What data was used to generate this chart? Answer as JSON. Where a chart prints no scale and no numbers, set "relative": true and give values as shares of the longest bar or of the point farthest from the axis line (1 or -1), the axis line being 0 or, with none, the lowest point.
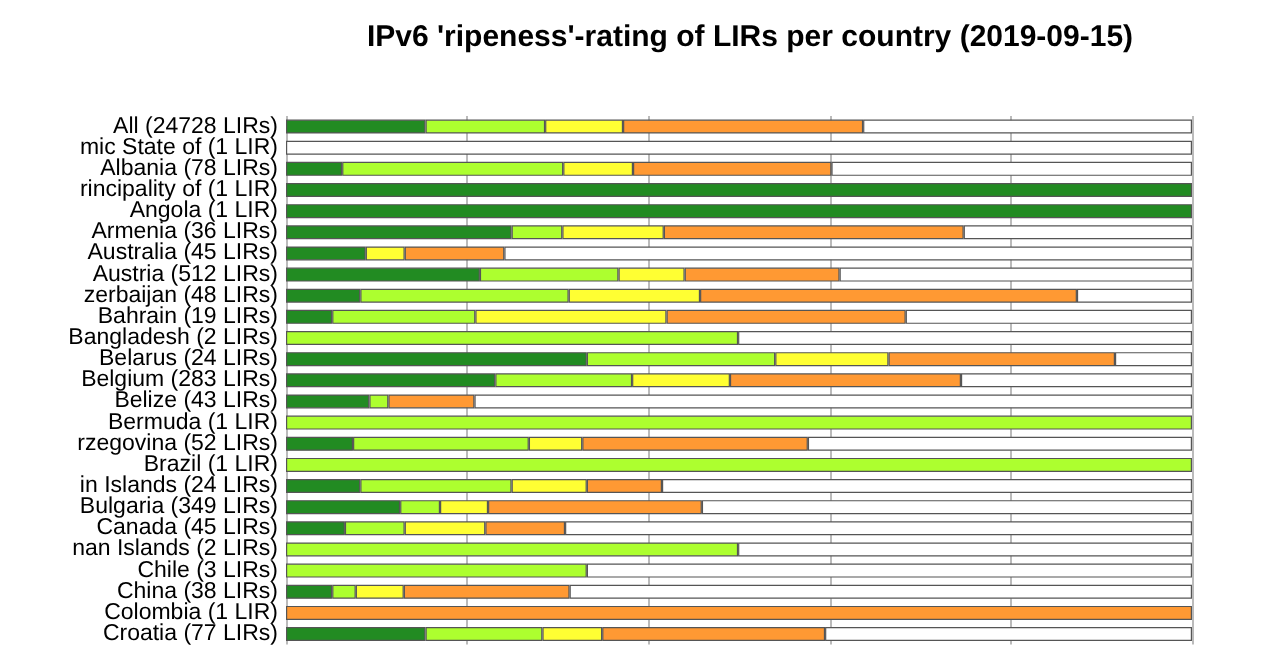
{
  "chart_data": {
    "type": "bar",
    "title": "IPv6 'ripeness'-rating of LIRs per country (2019-09-15)",
    "orientation": "horizontal",
    "stacked": true,
    "relative": true,
    "grid": "x",
    "categories": [
      "All (24728 LIRs)",
      "mic State of (1 LIR)",
      "Albania (78 LIRs)",
      "rincipality of (1 LIR)",
      "Angola (1 LIR)",
      "Armenia (36 LIRs)",
      "Australia (45 LIRs)",
      "Austria (512 LIRs)",
      "zerbaijan (48 LIRs)",
      "Bahrain (19 LIRs)",
      "Bangladesh (2 LIRs)",
      "Belarus (24 LIRs)",
      "Belgium (283 LIRs)",
      "Belize (43 LIRs)",
      "Bermuda (1 LIR)",
      "rzegovina (52 LIRs)",
      "Brazil (1 LIR)",
      "in Islands (24 LIRs)",
      "Bulgaria (349 LIRs)",
      "Canada (45 LIRs)",
      "nan Islands (2 LIRs)",
      "Chile (3 LIRs)",
      "China (38 LIRs)",
      "Colombia (1 LIR)",
      "Croatia (77 LIRs)"
    ],
    "series": [
      {
        "color": "#228b22",
        "values": [
          0.154,
          0,
          0.062,
          1,
          1,
          0.249,
          0.088,
          0.214,
          0.082,
          0.051,
          0,
          0.332,
          0.231,
          0.092,
          0,
          0.074,
          0,
          0.082,
          0.126,
          0.065,
          0,
          0,
          0.051,
          0,
          0.154
        ]
      },
      {
        "color": "#adff2f",
        "values": [
          0.132,
          0,
          0.244,
          0,
          0,
          0.056,
          0,
          0.153,
          0.23,
          0.158,
          0.499,
          0.208,
          0.151,
          0.021,
          1,
          0.194,
          1,
          0.167,
          0.044,
          0.066,
          0.499,
          0.332,
          0.026,
          0,
          0.129
        ]
      },
      {
        "color": "#ffff33",
        "values": [
          0.086,
          0,
          0.077,
          0,
          0,
          0.112,
          0.043,
          0.073,
          0.145,
          0.211,
          0,
          0.125,
          0.108,
          0,
          0,
          0.059,
          0,
          0.083,
          0.053,
          0.089,
          0,
          0,
          0.053,
          0,
          0.066
        ]
      },
      {
        "color": "#ff9933",
        "values": [
          0.265,
          0,
          0.219,
          0,
          0,
          0.331,
          0.11,
          0.171,
          0.416,
          0.264,
          0,
          0.25,
          0.255,
          0.095,
          0,
          0.249,
          0,
          0.083,
          0.236,
          0.088,
          0,
          0,
          0.183,
          1,
          0.246
        ]
      },
      {
        "color": "#ffffff",
        "values": [
          0.363,
          1,
          0.398,
          0,
          0,
          0.252,
          0.759,
          0.389,
          0.127,
          0.316,
          0.501,
          0.085,
          0.255,
          0.792,
          0,
          0.424,
          0,
          0.585,
          0.541,
          0.692,
          0.501,
          0.668,
          0.687,
          0,
          0.405
        ]
      }
    ]
  }
}
